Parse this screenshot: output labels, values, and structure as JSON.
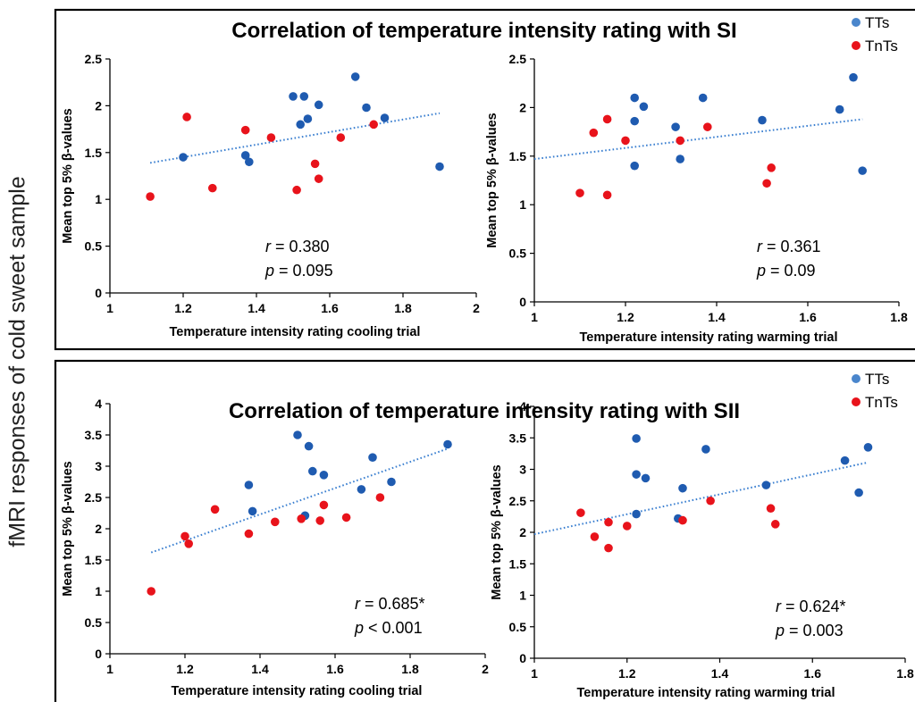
{
  "side_label": "fMRI responses of cold sweet sample",
  "colors": {
    "TTs": "#1f5bb0",
    "TnTs": "#e8131b",
    "trendline": "#3a7fd0",
    "legend_TTs_marker": "#4a86cc"
  },
  "panels": [
    {
      "title": "Correlation of temperature intensity rating with SI",
      "legend": [
        {
          "label": "TTs",
          "series": "TTs"
        },
        {
          "label": "TnTs",
          "series": "TnTs"
        }
      ]
    },
    {
      "title": "Correlation of temperature intensity rating with SII",
      "legend": [
        {
          "label": "TTs",
          "series": "TTs"
        },
        {
          "label": "TnTs",
          "series": "TnTs"
        }
      ]
    }
  ],
  "chart_data": [
    {
      "type": "scatter",
      "xlabel": "Temperature intensity rating cooling trial",
      "ylabel": "Mean top 5%  β-values",
      "xlim": [
        1,
        2
      ],
      "ylim": [
        0,
        2.5
      ],
      "xticks": [
        1,
        1.2,
        1.4,
        1.6,
        1.8,
        2
      ],
      "xtick_labels": [
        "1",
        "1.2",
        "1.4",
        "1.6",
        "1.8",
        "2"
      ],
      "yticks": [
        0,
        0.5,
        1,
        1.5,
        2,
        2.5
      ],
      "ytick_labels": [
        "0",
        "0.5",
        "1",
        "1.5",
        "2",
        "2.5"
      ],
      "stat_r": "0.380",
      "stat_p": "= 0.095",
      "trendline": {
        "x": [
          1.11,
          1.9
        ],
        "y": [
          1.39,
          1.92
        ]
      },
      "series": [
        {
          "name": "TTs",
          "x": [
            1.2,
            1.37,
            1.38,
            1.5,
            1.52,
            1.53,
            1.54,
            1.57,
            1.67,
            1.7,
            1.75,
            1.9
          ],
          "y": [
            1.45,
            1.47,
            1.4,
            2.1,
            1.8,
            2.1,
            1.86,
            2.01,
            2.31,
            1.98,
            1.87,
            1.35
          ]
        },
        {
          "name": "TnTs",
          "x": [
            1.11,
            1.21,
            1.28,
            1.37,
            1.44,
            1.51,
            1.56,
            1.57,
            1.63,
            1.72
          ],
          "y": [
            1.03,
            1.88,
            1.12,
            1.74,
            1.66,
            1.1,
            1.38,
            1.22,
            1.66,
            1.8
          ]
        }
      ]
    },
    {
      "type": "scatter",
      "xlabel": "Temperature intensity rating warming trial",
      "ylabel": "Mean top 5%  β-values",
      "xlim": [
        1,
        1.8
      ],
      "ylim": [
        0,
        2.5
      ],
      "xticks": [
        1,
        1.2,
        1.4,
        1.6,
        1.8
      ],
      "xtick_labels": [
        "1",
        "1.2",
        "1.4",
        "1.6",
        "1.8"
      ],
      "yticks": [
        0,
        0.5,
        1,
        1.5,
        2,
        2.5
      ],
      "ytick_labels": [
        "0",
        "0.5",
        "1",
        "1.5",
        "2",
        "2.5"
      ],
      "stat_r": "0.361",
      "stat_p": "= 0.09",
      "trendline": {
        "x": [
          1,
          1.72
        ],
        "y": [
          1.47,
          1.88
        ]
      },
      "series": [
        {
          "name": "TTs",
          "x": [
            1.22,
            1.22,
            1.22,
            1.24,
            1.31,
            1.32,
            1.37,
            1.5,
            1.67,
            1.7,
            1.72
          ],
          "y": [
            2.1,
            1.86,
            1.4,
            2.01,
            1.8,
            1.47,
            2.1,
            1.87,
            1.98,
            2.31,
            1.35
          ]
        },
        {
          "name": "TnTs",
          "x": [
            1.1,
            1.13,
            1.16,
            1.16,
            1.2,
            1.32,
            1.38,
            1.51,
            1.52
          ],
          "y": [
            1.12,
            1.74,
            1.88,
            1.1,
            1.66,
            1.66,
            1.8,
            1.22,
            1.38
          ]
        }
      ]
    },
    {
      "type": "scatter",
      "xlabel": "Temperature intensity rating cooling trial",
      "ylabel": "Mean top 5%  β-values",
      "xlim": [
        1,
        2
      ],
      "ylim": [
        0,
        4
      ],
      "xticks": [
        1,
        1.2,
        1.4,
        1.6,
        1.8,
        2
      ],
      "xtick_labels": [
        "1",
        "1.2",
        "1.4",
        "1.6",
        "1.8",
        "2"
      ],
      "yticks": [
        0,
        0.5,
        1,
        1.5,
        2,
        2.5,
        3,
        3.5,
        4
      ],
      "ytick_labels": [
        "0",
        "0.5",
        "1",
        "1.5",
        "2",
        "2.5",
        "3",
        "3.5",
        "4"
      ],
      "stat_r": "0.685*",
      "stat_p": "< 0.001",
      "trendline": {
        "x": [
          1.11,
          1.9
        ],
        "y": [
          1.62,
          3.28
        ]
      },
      "series": [
        {
          "name": "TTs",
          "x": [
            1.37,
            1.38,
            1.5,
            1.52,
            1.53,
            1.54,
            1.57,
            1.67,
            1.7,
            1.75,
            1.9
          ],
          "y": [
            2.7,
            2.28,
            3.5,
            2.21,
            3.32,
            2.92,
            2.86,
            2.63,
            3.14,
            2.75,
            3.35
          ]
        },
        {
          "name": "TnTs",
          "x": [
            1.11,
            1.2,
            1.21,
            1.28,
            1.37,
            1.44,
            1.51,
            1.56,
            1.57,
            1.63,
            1.72
          ],
          "y": [
            1.0,
            1.88,
            1.76,
            2.31,
            1.92,
            2.11,
            2.16,
            2.13,
            2.38,
            2.18,
            2.5
          ]
        }
      ]
    },
    {
      "type": "scatter",
      "xlabel": "Temperature intensity rating warming trial",
      "ylabel": "Mean top 5%  β-values",
      "xlim": [
        1,
        1.8
      ],
      "ylim": [
        0,
        4
      ],
      "xticks": [
        1,
        1.2,
        1.4,
        1.6,
        1.8
      ],
      "xtick_labels": [
        "1",
        "1.2",
        "1.4",
        "1.6",
        "1.8"
      ],
      "yticks": [
        0,
        0.5,
        1,
        1.5,
        2,
        2.5,
        3,
        3.5,
        4
      ],
      "ytick_labels": [
        "0",
        "0.5",
        "1",
        "1.5",
        "2",
        "2.5",
        "3",
        "3.5",
        "4"
      ],
      "stat_r": "0.624*",
      "stat_p": "= 0.003",
      "trendline": {
        "x": [
          1,
          1.72
        ],
        "y": [
          1.97,
          3.11
        ]
      },
      "series": [
        {
          "name": "TTs",
          "x": [
            1.22,
            1.22,
            1.22,
            1.24,
            1.31,
            1.32,
            1.37,
            1.5,
            1.67,
            1.7,
            1.72
          ],
          "y": [
            3.49,
            2.92,
            2.29,
            2.86,
            2.22,
            2.7,
            3.32,
            2.75,
            3.14,
            2.63,
            3.35
          ]
        },
        {
          "name": "TnTs",
          "x": [
            1.1,
            1.13,
            1.16,
            1.16,
            1.2,
            1.32,
            1.38,
            1.51,
            1.52
          ],
          "y": [
            2.31,
            1.93,
            2.16,
            1.75,
            2.1,
            2.19,
            2.5,
            2.38,
            2.13
          ]
        }
      ]
    }
  ]
}
